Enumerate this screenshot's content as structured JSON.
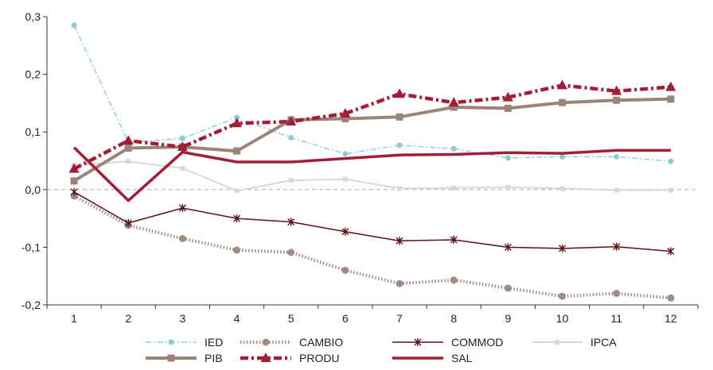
{
  "chart_data": {
    "type": "line",
    "title": "",
    "xlabel": "",
    "ylabel": "",
    "x": [
      1,
      2,
      3,
      4,
      5,
      6,
      7,
      8,
      9,
      10,
      11,
      12
    ],
    "x_tick_labels": [
      "1",
      "2",
      "3",
      "4",
      "5",
      "6",
      "7",
      "8",
      "9",
      "10",
      "11",
      "12"
    ],
    "ylim": [
      -0.2,
      0.3
    ],
    "y_ticks": [
      -0.2,
      -0.1,
      0.0,
      0.1,
      0.2,
      0.3
    ],
    "y_tick_labels": [
      "-0,2",
      "-0,1",
      "0,0",
      "0,1",
      "0,2",
      "0,3"
    ],
    "zero_line": "dashed",
    "grid": false,
    "legend_position": "bottom",
    "series": [
      {
        "name": "IED",
        "color": "#8ccbd6",
        "dash": "dash-dot",
        "marker": "circle",
        "values": [
          0.285,
          0.082,
          0.089,
          0.125,
          0.09,
          0.062,
          0.077,
          0.071,
          0.055,
          0.057,
          0.057,
          0.049
        ]
      },
      {
        "name": "CAMBIO",
        "color": "#a08c82",
        "dash": "dotted-thick",
        "marker": "circle",
        "values": [
          -0.011,
          -0.062,
          -0.085,
          -0.105,
          -0.109,
          -0.14,
          -0.163,
          -0.157,
          -0.171,
          -0.185,
          -0.18,
          -0.188
        ]
      },
      {
        "name": "COMMOD",
        "color": "#5c1014",
        "dash": "solid",
        "marker": "star",
        "values": [
          -0.004,
          -0.058,
          -0.032,
          -0.05,
          -0.056,
          -0.073,
          -0.089,
          -0.087,
          -0.1,
          -0.102,
          -0.099,
          -0.107
        ]
      },
      {
        "name": "IPCA",
        "color": "#ddd5d8",
        "dash": "solid",
        "marker": "square",
        "values": [
          0.042,
          0.049,
          0.037,
          -0.002,
          0.016,
          0.018,
          0.002,
          0.003,
          0.004,
          0.002,
          -0.001,
          -0.001
        ]
      },
      {
        "name": "PIB",
        "color": "#9c847a",
        "dash": "solid-thick",
        "marker": "square",
        "values": [
          0.015,
          0.072,
          0.074,
          0.067,
          0.121,
          0.123,
          0.126,
          0.143,
          0.141,
          0.151,
          0.155,
          0.157
        ]
      },
      {
        "name": "PRODU",
        "color": "#a51c36",
        "dash": "dash-dot-thick",
        "marker": "triangle",
        "values": [
          0.036,
          0.085,
          0.074,
          0.115,
          0.118,
          0.132,
          0.166,
          0.151,
          0.16,
          0.181,
          0.171,
          0.178
        ]
      },
      {
        "name": "SAL",
        "color": "#a51c36",
        "dash": "solid-thick",
        "marker": "none",
        "values": [
          0.073,
          -0.019,
          0.065,
          0.048,
          0.048,
          0.054,
          0.06,
          0.061,
          0.064,
          0.063,
          0.068,
          0.068
        ]
      }
    ]
  }
}
